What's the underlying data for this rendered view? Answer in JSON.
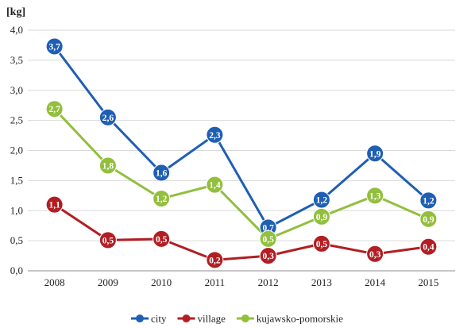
{
  "chart_data": {
    "type": "line",
    "ylabel": "[kg]",
    "ylim": [
      0,
      4
    ],
    "yticks": [
      "0,0",
      "0,5",
      "1,0",
      "1,5",
      "2,0",
      "2,5",
      "3,0",
      "3,5",
      "4,0"
    ],
    "categories": [
      "2008",
      "2009",
      "2010",
      "2011",
      "2012",
      "2013",
      "2014",
      "2015"
    ],
    "grid": "horizontal",
    "legend_position": "bottom",
    "series": [
      {
        "name": "city",
        "color": "#1f5fb3",
        "values": [
          3.73,
          2.55,
          1.63,
          2.26,
          0.72,
          1.18,
          1.95,
          1.17
        ],
        "labels": [
          "3,7",
          "2,6",
          "1,6",
          "2,3",
          "0,7",
          "1,2",
          "1,9",
          "1,2"
        ]
      },
      {
        "name": "village",
        "color": "#b21e23",
        "values": [
          1.1,
          0.51,
          0.53,
          0.18,
          0.25,
          0.45,
          0.28,
          0.4
        ],
        "labels": [
          "1,1",
          "0,5",
          "0,5",
          "0,2",
          "0,3",
          "0,5",
          "0,3",
          "0,4"
        ]
      },
      {
        "name": "kujawsko-pomorskie",
        "color": "#92bf3d",
        "values": [
          2.69,
          1.75,
          1.2,
          1.43,
          0.53,
          0.9,
          1.25,
          0.86
        ],
        "labels": [
          "2,7",
          "1,8",
          "1,2",
          "1,4",
          "0,5",
          "0,9",
          "1,3",
          "0,9"
        ]
      }
    ]
  }
}
